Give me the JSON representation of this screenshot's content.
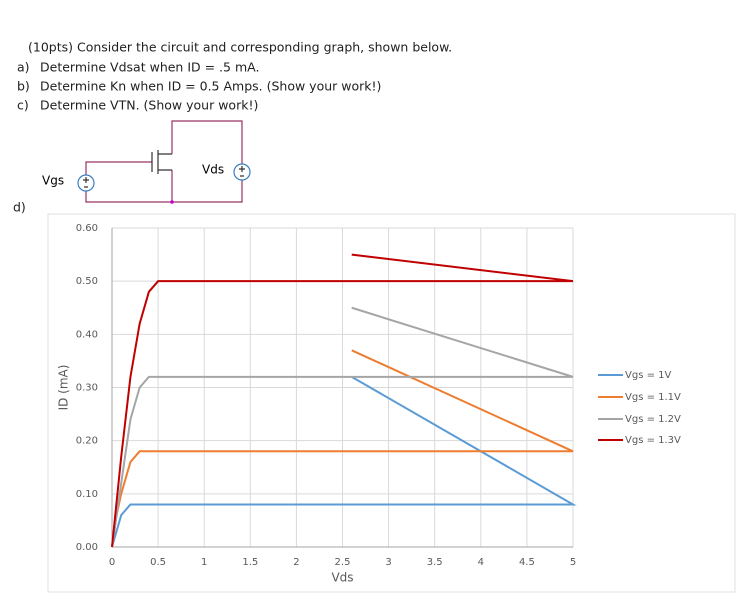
{
  "header": {
    "title": "(10pts) Consider the circuit and corresponding graph, shown below."
  },
  "items": [
    {
      "label": "a)",
      "text": "Determine Vdsat when ID = .5 mA."
    },
    {
      "label": "b)",
      "text": "Determine Kn when ID = 0.5 Amps. (Show your work!)"
    },
    {
      "label": "c)",
      "text": "Determine VTN. (Show your work!)"
    },
    {
      "label": "d)"
    }
  ],
  "circuit": {
    "source_left": "Vgs",
    "source_right": "Vds"
  },
  "chart_data": {
    "type": "line",
    "x_label": "Vds",
    "y_label": "ID (mA)",
    "xlim": [
      0,
      5
    ],
    "ylim": [
      0,
      0.6
    ],
    "xticks": [
      0,
      0.5,
      1,
      1.5,
      2,
      2.5,
      3,
      3.5,
      4,
      4.5,
      5
    ],
    "yticks": [
      {
        "value": 0,
        "label": "0.00"
      },
      {
        "value": 0.1,
        "label": "0.10"
      },
      {
        "value": 0.2,
        "label": "0.20"
      },
      {
        "value": 0.3,
        "label": "0.30"
      },
      {
        "value": 0.4,
        "label": "0.40"
      },
      {
        "value": 0.5,
        "label": "0.50"
      },
      {
        "value": 0.6,
        "label": "0.60"
      }
    ],
    "grid": true,
    "legend": "right",
    "series": [
      {
        "name": "Vgs = 1V",
        "color": "#5b9bd5",
        "x": [
          0,
          0.1,
          0.2,
          0.25,
          5,
          2.6
        ],
        "values": [
          0,
          0.06,
          0.08,
          0.08,
          0.08,
          0.32
        ]
      },
      {
        "name": "Vgs = 1.1V",
        "color": "#ed7d31",
        "x": [
          0,
          0.05,
          0.1,
          0.2,
          0.3,
          5,
          2.6
        ],
        "values": [
          0,
          0.06,
          0.1,
          0.16,
          0.18,
          0.18,
          0.37
        ]
      },
      {
        "name": "Vgs = 1.2V",
        "color": "#a5a5a5",
        "x": [
          0,
          0.1,
          0.2,
          0.3,
          0.4,
          5,
          2.6
        ],
        "values": [
          0,
          0.12,
          0.24,
          0.3,
          0.32,
          0.32,
          0.45
        ]
      },
      {
        "name": "Vgs = 1.3V",
        "color": "#c00000",
        "x": [
          0,
          0.1,
          0.2,
          0.3,
          0.4,
          0.5,
          5,
          2.6
        ],
        "values": [
          0,
          0.17,
          0.32,
          0.42,
          0.48,
          0.5,
          0.5,
          0.55
        ]
      }
    ]
  }
}
